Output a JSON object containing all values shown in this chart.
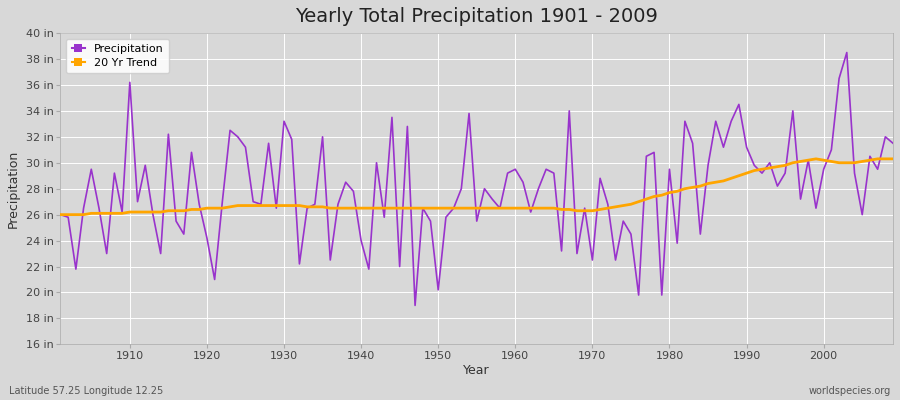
{
  "title": "Yearly Total Precipitation 1901 - 2009",
  "xlabel": "Year",
  "ylabel": "Precipitation",
  "lat_lon_label": "Latitude 57.25 Longitude 12.25",
  "watermark": "worldspecies.org",
  "years": [
    1901,
    1902,
    1903,
    1904,
    1905,
    1906,
    1907,
    1908,
    1909,
    1910,
    1911,
    1912,
    1913,
    1914,
    1915,
    1916,
    1917,
    1918,
    1919,
    1920,
    1921,
    1922,
    1923,
    1924,
    1925,
    1926,
    1927,
    1928,
    1929,
    1930,
    1931,
    1932,
    1933,
    1934,
    1935,
    1936,
    1937,
    1938,
    1939,
    1940,
    1941,
    1942,
    1943,
    1944,
    1945,
    1946,
    1947,
    1948,
    1949,
    1950,
    1951,
    1952,
    1953,
    1954,
    1955,
    1956,
    1957,
    1958,
    1959,
    1960,
    1961,
    1962,
    1963,
    1964,
    1965,
    1966,
    1967,
    1968,
    1969,
    1970,
    1971,
    1972,
    1973,
    1974,
    1975,
    1976,
    1977,
    1978,
    1979,
    1980,
    1981,
    1982,
    1983,
    1984,
    1985,
    1986,
    1987,
    1988,
    1989,
    1990,
    1991,
    1992,
    1993,
    1994,
    1995,
    1996,
    1997,
    1998,
    1999,
    2000,
    2001,
    2002,
    2003,
    2004,
    2005,
    2006,
    2007,
    2008,
    2009
  ],
  "precipitation": [
    26.0,
    25.8,
    21.8,
    26.5,
    29.5,
    26.5,
    23.0,
    29.2,
    26.2,
    36.2,
    27.0,
    29.8,
    26.0,
    23.0,
    32.2,
    25.5,
    24.5,
    30.8,
    26.8,
    24.2,
    21.0,
    27.0,
    32.5,
    32.0,
    31.2,
    27.0,
    26.8,
    31.5,
    26.5,
    33.2,
    31.8,
    22.2,
    26.5,
    26.8,
    32.0,
    22.5,
    26.8,
    28.5,
    27.8,
    24.0,
    21.8,
    30.0,
    25.8,
    33.5,
    22.0,
    32.8,
    19.0,
    26.5,
    25.5,
    20.2,
    25.8,
    26.5,
    28.0,
    33.8,
    25.5,
    28.0,
    27.2,
    26.5,
    29.2,
    29.5,
    28.5,
    26.2,
    28.0,
    29.5,
    29.2,
    23.2,
    34.0,
    23.0,
    26.5,
    22.5,
    28.8,
    26.8,
    22.5,
    25.5,
    24.5,
    19.8,
    30.5,
    30.8,
    19.8,
    29.5,
    23.8,
    33.2,
    31.5,
    24.5,
    29.8,
    33.2,
    31.2,
    33.2,
    34.5,
    31.2,
    29.8,
    29.2,
    30.0,
    28.2,
    29.2,
    34.0,
    27.2,
    30.2,
    26.5,
    29.5,
    31.0,
    36.5,
    38.5,
    29.2,
    26.0,
    30.5,
    29.5,
    32.0,
    31.5
  ],
  "trend": [
    26.0,
    26.0,
    26.0,
    26.0,
    26.1,
    26.1,
    26.1,
    26.1,
    26.1,
    26.2,
    26.2,
    26.2,
    26.2,
    26.2,
    26.3,
    26.3,
    26.3,
    26.4,
    26.4,
    26.5,
    26.5,
    26.5,
    26.6,
    26.7,
    26.7,
    26.7,
    26.7,
    26.7,
    26.7,
    26.7,
    26.7,
    26.7,
    26.6,
    26.6,
    26.6,
    26.5,
    26.5,
    26.5,
    26.5,
    26.5,
    26.5,
    26.5,
    26.5,
    26.5,
    26.5,
    26.5,
    26.5,
    26.5,
    26.5,
    26.5,
    26.5,
    26.5,
    26.5,
    26.5,
    26.5,
    26.5,
    26.5,
    26.5,
    26.5,
    26.5,
    26.5,
    26.5,
    26.5,
    26.5,
    26.5,
    26.4,
    26.4,
    26.3,
    26.3,
    26.3,
    26.4,
    26.5,
    26.6,
    26.7,
    26.8,
    27.0,
    27.2,
    27.4,
    27.5,
    27.7,
    27.8,
    28.0,
    28.1,
    28.2,
    28.4,
    28.5,
    28.6,
    28.8,
    29.0,
    29.2,
    29.4,
    29.5,
    29.6,
    29.7,
    29.8,
    30.0,
    30.1,
    30.2,
    30.3,
    30.2,
    30.1,
    30.0,
    30.0,
    30.0,
    30.1,
    30.2,
    30.3,
    30.3,
    30.3
  ],
  "precip_color": "#9933CC",
  "trend_color": "#FFA500",
  "fig_bg_color": "#D8D8D8",
  "plot_bg_color": "#D8D8D8",
  "grid_color": "#BBBBBB",
  "ylim": [
    16,
    40
  ],
  "yticks": [
    16,
    18,
    20,
    22,
    24,
    26,
    28,
    30,
    32,
    34,
    36,
    38,
    40
  ],
  "ytick_labels": [
    "16 in",
    "18 in",
    "20 in",
    "22 in",
    "24 in",
    "26 in",
    "28 in",
    "30 in",
    "32 in",
    "34 in",
    "36 in",
    "38 in",
    "40 in"
  ],
  "xlim": [
    1901,
    2009
  ],
  "xticks": [
    1910,
    1920,
    1930,
    1940,
    1950,
    1960,
    1970,
    1980,
    1990,
    2000
  ],
  "title_fontsize": 14,
  "axis_label_fontsize": 9,
  "tick_fontsize": 8
}
